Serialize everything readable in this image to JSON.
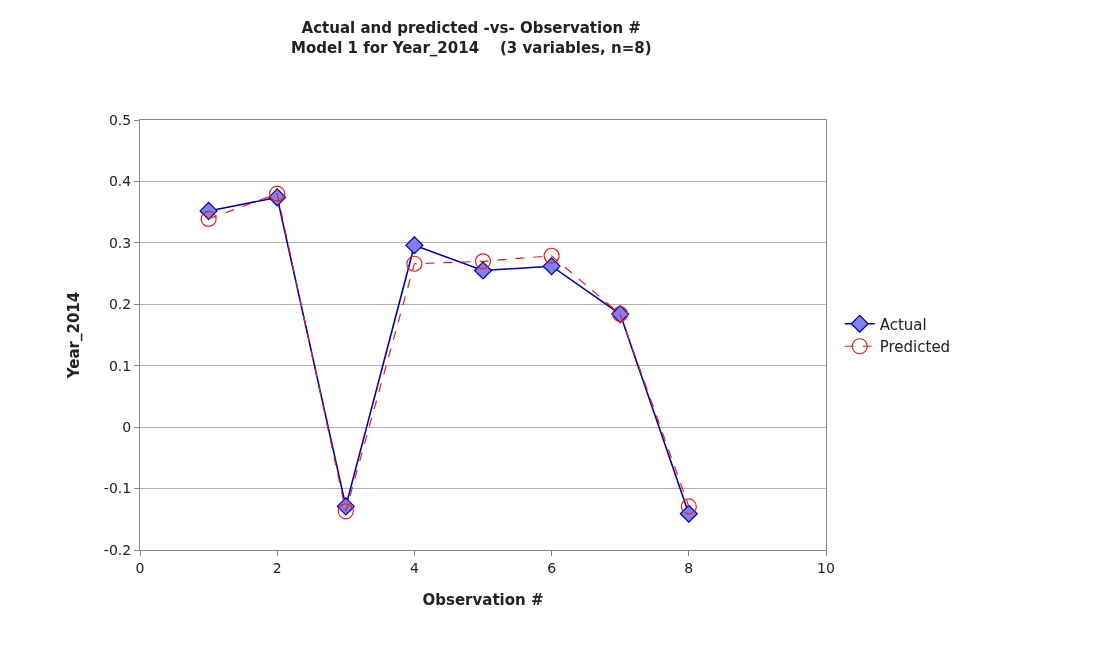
{
  "chart_data": {
    "type": "line",
    "title": "Actual and predicted -vs- Observation #",
    "subtitle": "Model 1 for Year_2014    (3 variables, n=8)",
    "xlabel": "Observation #",
    "ylabel": "Year_2014",
    "x": [
      1,
      2,
      3,
      4,
      5,
      6,
      7,
      8
    ],
    "series": [
      {
        "name": "Actual",
        "color": "#0000a0",
        "values": [
          0.352,
          0.374,
          -0.129,
          0.296,
          0.255,
          0.262,
          0.184,
          -0.141
        ],
        "marker": "diamond",
        "line_style": "solid"
      },
      {
        "name": "Predicted",
        "color": "#e02020",
        "values": [
          0.339,
          0.38,
          -0.137,
          0.266,
          0.27,
          0.279,
          0.184,
          -0.129
        ],
        "marker": "circle",
        "line_style": "dashed"
      }
    ],
    "xlim": [
      0,
      10
    ],
    "xticks": [
      0,
      2,
      4,
      6,
      8,
      10
    ],
    "ylim": [
      -0.2,
      0.5
    ],
    "yticks": [
      -0.2,
      -0.1,
      0,
      0.1,
      0.2,
      0.3,
      0.4,
      0.5
    ],
    "grid": "y",
    "legend": "right"
  }
}
